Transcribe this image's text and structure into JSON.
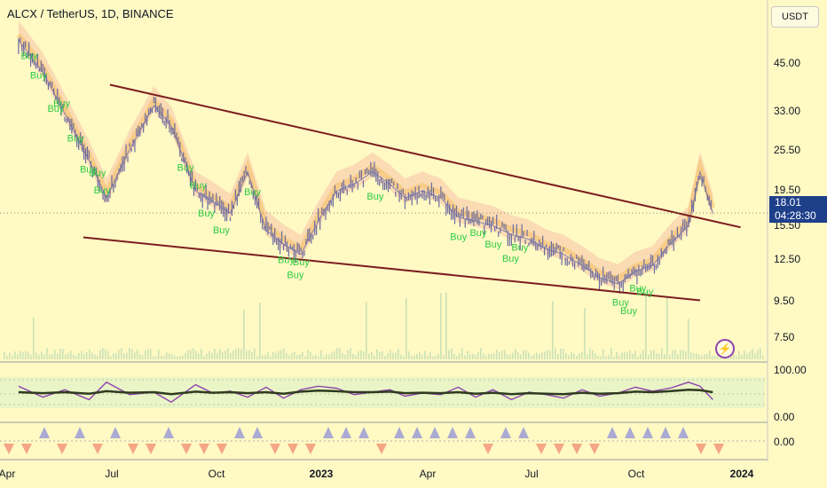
{
  "chart_title": "ALCX / TetherUS, 1D, BINANCE",
  "currency": "USDT",
  "timer": "04:28:30",
  "icons": {
    "alert": "lightning-icon"
  },
  "colors": {
    "background": "#fff9c4",
    "candle": "#6a6aa0",
    "trendline": "#7b1e1e",
    "buy_label": "#2ecc40",
    "price_box": "#1e3f8a",
    "cloud": "#f4b6a0",
    "oscillator_fast": "#8e44ad",
    "oscillator_slow": "#2f3b1f"
  },
  "chart_data": [
    {
      "type": "line",
      "title": "ALCX / TetherUS, 1D, BINANCE",
      "y_scale": "log",
      "ylim": [
        6.5,
        62
      ],
      "y_ticks": [
        "45.00",
        "33.00",
        "25.50",
        "19.50",
        "15.50",
        "12.50",
        "9.50",
        "7.50"
      ],
      "x_ticks": [
        "Apr",
        "Jul",
        "Oct",
        "2023",
        "Apr",
        "Jul",
        "Oct",
        "2024"
      ],
      "last_price": "18.01",
      "x": [
        "2022-04-10",
        "2022-05-01",
        "2022-05-20",
        "2022-06-10",
        "2022-06-25",
        "2022-07-15",
        "2022-08-05",
        "2022-08-20",
        "2022-09-10",
        "2022-09-25",
        "2022-10-10",
        "2022-10-25",
        "2022-11-10",
        "2022-11-25",
        "2022-12-10",
        "2022-12-25",
        "2023-01-10",
        "2023-01-25",
        "2023-02-10",
        "2023-02-25",
        "2023-03-10",
        "2023-03-25",
        "2023-04-10",
        "2023-04-25",
        "2023-05-10",
        "2023-05-25",
        "2023-06-10",
        "2023-06-25",
        "2023-07-10",
        "2023-07-25",
        "2023-08-10",
        "2023-08-25",
        "2023-09-10",
        "2023-09-25",
        "2023-10-10",
        "2023-10-25",
        "2023-11-10",
        "2023-11-20",
        "2023-12-01"
      ],
      "series": [
        {
          "values": [
            60,
            48,
            36,
            26,
            20,
            28,
            38,
            33,
            21,
            19.5,
            18,
            24,
            16,
            14.5,
            13.5,
            17,
            21,
            22,
            24,
            22,
            20,
            21,
            20,
            17.5,
            17,
            16.5,
            15.5,
            15,
            14,
            13.5,
            12.5,
            11.5,
            11,
            12,
            12.5,
            14.5,
            16.5,
            24,
            18.01
          ]
        }
      ],
      "annotations": [
        "Buy",
        "Buy",
        "Buy",
        "Buy",
        "Buy",
        "Buy",
        "Buy",
        "Buy",
        "Buy",
        "Buy",
        "Buy",
        "Buy",
        "Buy",
        "Buy",
        "Buy",
        "Buy",
        "Buy",
        "Buy",
        "Buy",
        "Buy",
        "Buy",
        "Buy",
        "Buy",
        "Buy",
        "Buy",
        "Buy"
      ],
      "trendlines": [
        {
          "from": [
            "2022-06-28",
            44
          ],
          "to": [
            "2023-12-25",
            16.3
          ]
        },
        {
          "from": [
            "2022-06-05",
            15.2
          ],
          "to": [
            "2023-11-20",
            9.8
          ]
        }
      ]
    },
    {
      "type": "line",
      "ylim": [
        0,
        100
      ],
      "y_ticks": [
        "100.00",
        "0.00"
      ],
      "series": [
        {
          "values": [
            62,
            40,
            55,
            35,
            70,
            45,
            50,
            30,
            65,
            48,
            52,
            40,
            60,
            38,
            55,
            62,
            58,
            45,
            50,
            55,
            42,
            48,
            45,
            60,
            40,
            55,
            35,
            50,
            45,
            38,
            55,
            42,
            48,
            60,
            52,
            58,
            70,
            62,
            35
          ]
        },
        {
          "values": [
            50,
            48,
            50,
            47,
            52,
            49,
            50,
            46,
            51,
            49,
            50,
            48,
            50,
            47,
            51,
            53,
            52,
            50,
            50,
            51,
            48,
            49,
            48,
            50,
            47,
            49,
            46,
            48,
            47,
            46,
            49,
            47,
            48,
            51,
            50,
            52,
            55,
            54,
            50
          ]
        }
      ]
    },
    {
      "type": "bar",
      "y_ticks": [
        "0.00"
      ]
    }
  ]
}
